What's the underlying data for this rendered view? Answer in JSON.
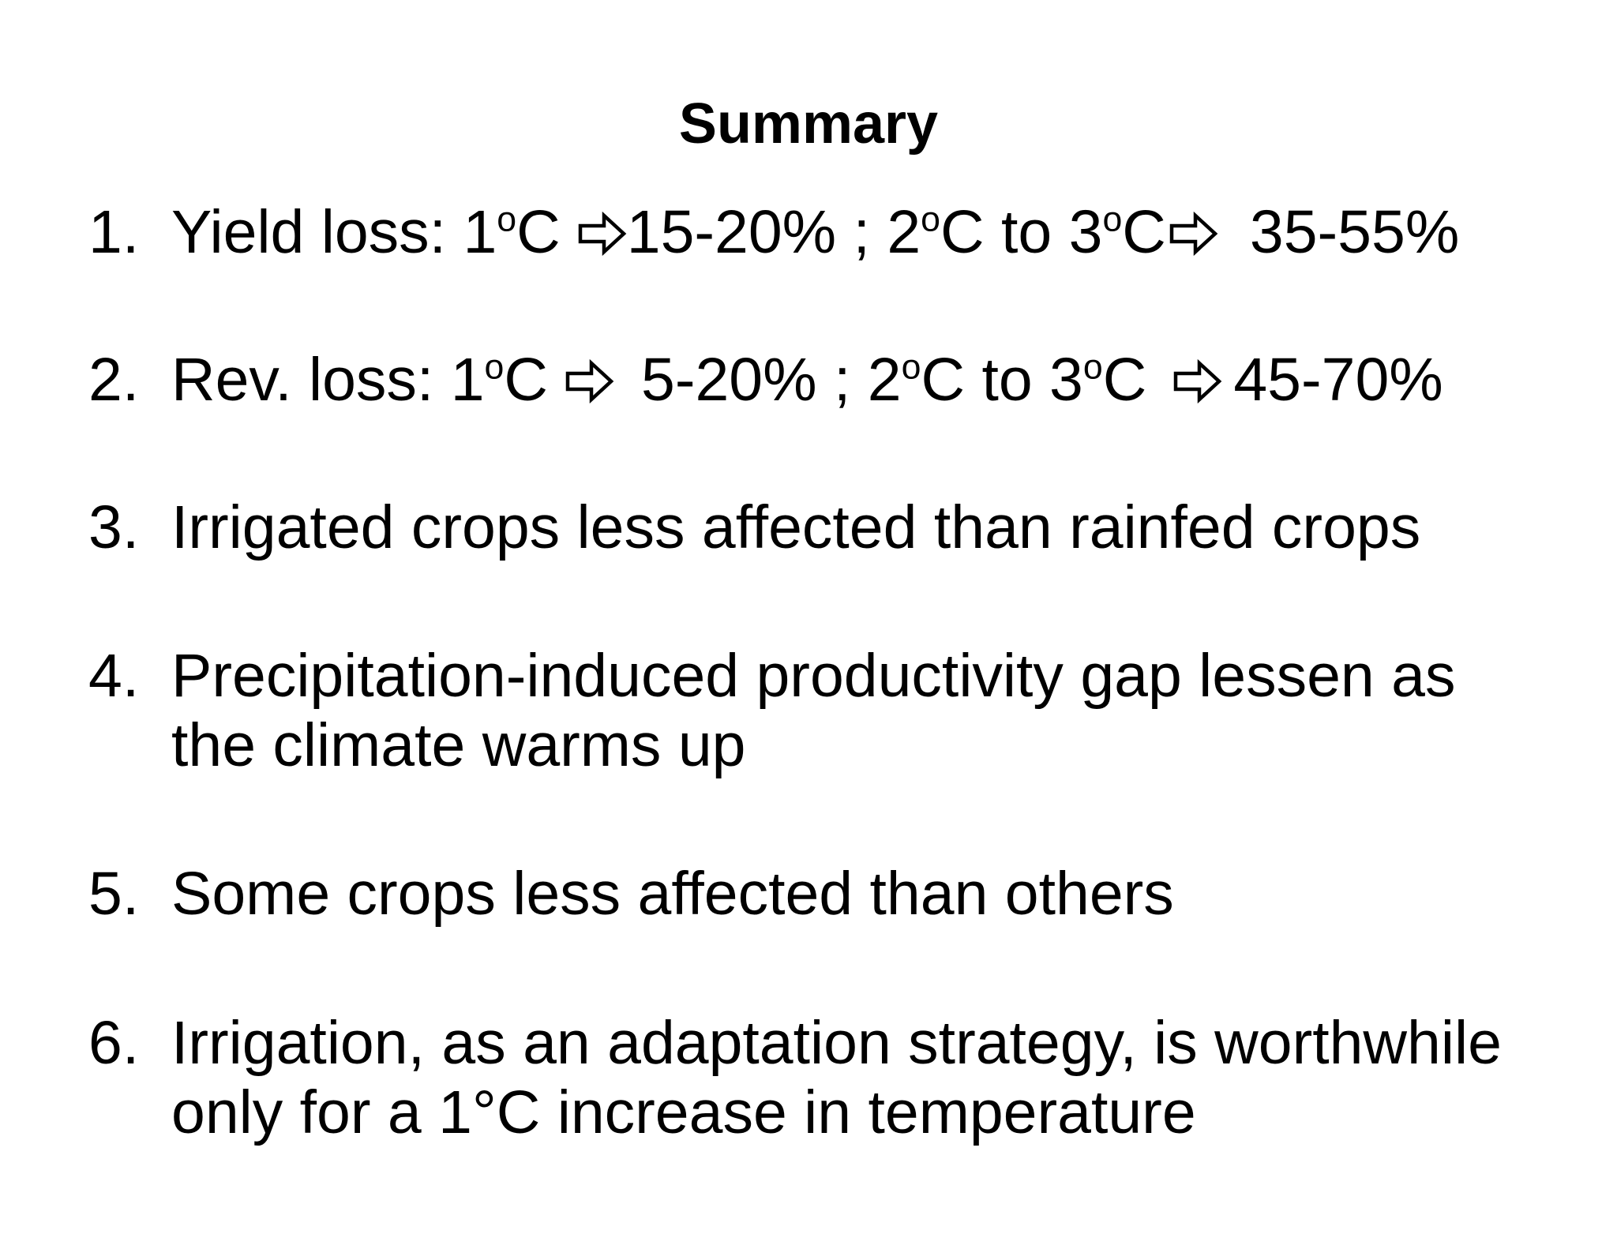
{
  "title": "Summary",
  "items": [
    {
      "number": "1.",
      "parts": {
        "a": "Yield loss: 1",
        "sup1": "o",
        "b": "C",
        "c": "15-20% ; 2",
        "sup2": "o",
        "d": "C to 3",
        "sup3": "o",
        "e": "C",
        "f": "35-55%"
      }
    },
    {
      "number": "2.",
      "parts": {
        "a": "Rev. loss: 1",
        "sup1": "o",
        "b": "C",
        "c": "5-20% ; 2",
        "sup2": "o",
        "d": "C to 3",
        "sup3": "o",
        "e": "C",
        "f": "45-70%"
      }
    },
    {
      "number": "3.",
      "lines": [
        "Irrigated crops less affected than rainfed crops"
      ]
    },
    {
      "number": "4.",
      "lines": [
        "Precipitation-induced productivity gap lessen as",
        "the climate warms up"
      ]
    },
    {
      "number": "5.",
      "lines": [
        "Some crops less affected than others"
      ]
    },
    {
      "number": "6.",
      "lines": [
        "Irrigation, as an adaptation strategy, is worthwhile",
        "only for a 1°C increase in temperature"
      ]
    }
  ],
  "icons": {
    "arrow": "right-arrow-outline-icon"
  }
}
